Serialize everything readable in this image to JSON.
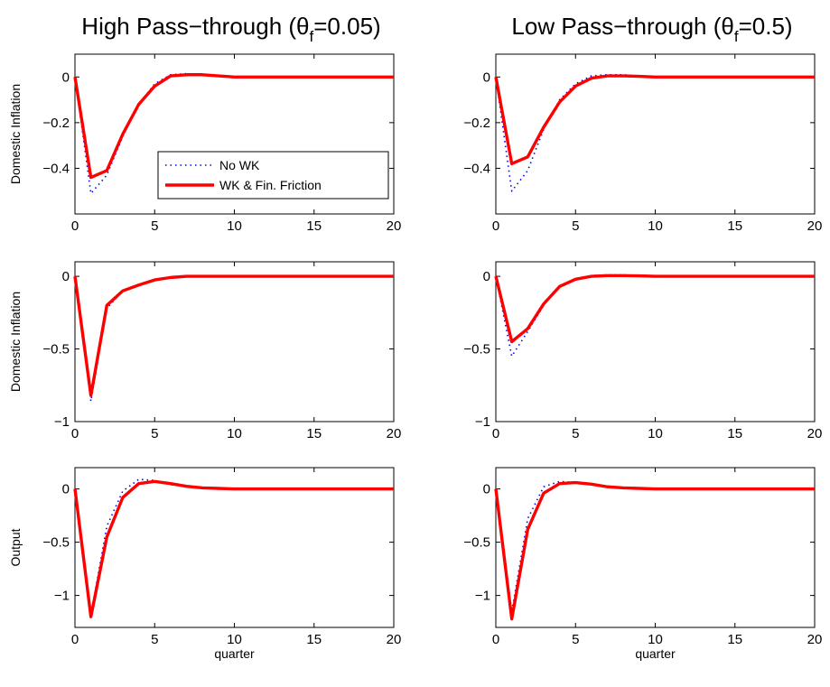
{
  "titles": [
    {
      "main": "High Pass−through (θ",
      "sub": "f",
      "tail": "=0.05)"
    },
    {
      "main": "Low Pass−through (θ",
      "sub": "f",
      "tail": "=0.5)"
    }
  ],
  "colors": {
    "no_wk": "#0000ff",
    "wk_fin": "#ff0000",
    "axes": "#000000"
  },
  "legend": {
    "entries": [
      "No WK",
      "WK & Fin. Friction"
    ],
    "placement": "inside-lower-right"
  },
  "chart_data": [
    {
      "type": "line",
      "row": 0,
      "col": 0,
      "title": "High Pass−through (θf=0.05)",
      "ylabel": "Domestic Inflation",
      "xlabel": "",
      "xlim": [
        0,
        20
      ],
      "ylim": [
        -0.6,
        0.1
      ],
      "xticks": [
        0,
        5,
        10,
        15,
        20
      ],
      "xtick_labels": [
        "0",
        "5",
        "10",
        "15",
        "20"
      ],
      "yticks": [
        -0.4,
        -0.2,
        0
      ],
      "ytick_labels": [
        "-0.4",
        "-0.2",
        "0"
      ],
      "x": [
        0,
        1,
        2,
        3,
        4,
        5,
        6,
        7,
        8,
        9,
        10,
        11,
        12,
        13,
        14,
        15,
        16,
        17,
        18,
        19,
        20
      ],
      "show_legend": true,
      "series": [
        {
          "name": "No WK",
          "style": "dotted",
          "values": [
            0,
            -0.51,
            -0.43,
            -0.26,
            -0.12,
            -0.03,
            0.01,
            0.015,
            0.01,
            0.005,
            0,
            0,
            0,
            0,
            0,
            0,
            0,
            0,
            0,
            0,
            0
          ]
        },
        {
          "name": "WK & Fin. Friction",
          "style": "solid",
          "values": [
            0,
            -0.44,
            -0.41,
            -0.25,
            -0.12,
            -0.04,
            0.005,
            0.01,
            0.01,
            0.005,
            0,
            0,
            0,
            0,
            0,
            0,
            0,
            0,
            0,
            0,
            0
          ]
        }
      ]
    },
    {
      "type": "line",
      "row": 0,
      "col": 1,
      "title": "Low Pass−through (θf=0.5)",
      "ylabel": "",
      "xlabel": "",
      "xlim": [
        0,
        20
      ],
      "ylim": [
        -0.6,
        0.1
      ],
      "xticks": [
        0,
        5,
        10,
        15,
        20
      ],
      "xtick_labels": [
        "0",
        "5",
        "10",
        "15",
        "20"
      ],
      "yticks": [
        -0.4,
        -0.2,
        0
      ],
      "ytick_labels": [
        "-0.4",
        "-0.2",
        "0"
      ],
      "x": [
        0,
        1,
        2,
        3,
        4,
        5,
        6,
        7,
        8,
        9,
        10,
        11,
        12,
        13,
        14,
        15,
        16,
        17,
        18,
        19,
        20
      ],
      "show_legend": false,
      "series": [
        {
          "name": "No WK",
          "style": "dotted",
          "values": [
            0,
            -0.5,
            -0.41,
            -0.23,
            -0.1,
            -0.03,
            0.005,
            0.01,
            0.01,
            0.005,
            0,
            0,
            0,
            0,
            0,
            0,
            0,
            0,
            0,
            0,
            0
          ]
        },
        {
          "name": "WK & Fin. Friction",
          "style": "solid",
          "values": [
            0,
            -0.38,
            -0.35,
            -0.22,
            -0.11,
            -0.04,
            -0.005,
            0.005,
            0.005,
            0.003,
            0,
            0,
            0,
            0,
            0,
            0,
            0,
            0,
            0,
            0,
            0
          ]
        }
      ]
    },
    {
      "type": "line",
      "row": 1,
      "col": 0,
      "title": "",
      "ylabel": "Domestic Inflation",
      "xlabel": "",
      "xlim": [
        0,
        20
      ],
      "ylim": [
        -1,
        0.1
      ],
      "xticks": [
        0,
        5,
        10,
        15,
        20
      ],
      "xtick_labels": [
        "0",
        "5",
        "10",
        "15",
        "20"
      ],
      "yticks": [
        -1,
        -0.5,
        0
      ],
      "ytick_labels": [
        "-1",
        "-0.5",
        "0"
      ],
      "x": [
        0,
        1,
        2,
        3,
        4,
        5,
        6,
        7,
        8,
        9,
        10,
        11,
        12,
        13,
        14,
        15,
        16,
        17,
        18,
        19,
        20
      ],
      "show_legend": false,
      "series": [
        {
          "name": "No WK",
          "style": "dotted",
          "values": [
            0,
            -0.86,
            -0.22,
            -0.1,
            -0.06,
            -0.03,
            -0.01,
            0,
            0,
            0,
            0,
            0,
            0,
            0,
            0,
            0,
            0,
            0,
            0,
            0,
            0
          ]
        },
        {
          "name": "WK & Fin. Friction",
          "style": "solid",
          "values": [
            0,
            -0.82,
            -0.2,
            -0.1,
            -0.06,
            -0.025,
            -0.008,
            0,
            0,
            0,
            0,
            0,
            0,
            0,
            0,
            0,
            0,
            0,
            0,
            0,
            0
          ]
        }
      ]
    },
    {
      "type": "line",
      "row": 1,
      "col": 1,
      "title": "",
      "ylabel": "",
      "xlabel": "",
      "xlim": [
        0,
        20
      ],
      "ylim": [
        -1,
        0.1
      ],
      "xticks": [
        0,
        5,
        10,
        15,
        20
      ],
      "xtick_labels": [
        "0",
        "5",
        "10",
        "15",
        "20"
      ],
      "yticks": [
        -1,
        -0.5,
        0
      ],
      "ytick_labels": [
        "-1",
        "-0.5",
        "0"
      ],
      "x": [
        0,
        1,
        2,
        3,
        4,
        5,
        6,
        7,
        8,
        9,
        10,
        11,
        12,
        13,
        14,
        15,
        16,
        17,
        18,
        19,
        20
      ],
      "show_legend": false,
      "series": [
        {
          "name": "No WK",
          "style": "dotted",
          "values": [
            0,
            -0.55,
            -0.38,
            -0.2,
            -0.07,
            -0.02,
            0.005,
            0.01,
            0.01,
            0.005,
            0,
            0,
            0,
            0,
            0,
            0,
            0,
            0,
            0,
            0,
            0
          ]
        },
        {
          "name": "WK & Fin. Friction",
          "style": "solid",
          "values": [
            0,
            -0.45,
            -0.36,
            -0.19,
            -0.07,
            -0.02,
            0,
            0.005,
            0.005,
            0.003,
            0,
            0,
            0,
            0,
            0,
            0,
            0,
            0,
            0,
            0,
            0
          ]
        }
      ]
    },
    {
      "type": "line",
      "row": 2,
      "col": 0,
      "title": "",
      "ylabel": "Output",
      "xlabel": "quarter",
      "xlim": [
        0,
        20
      ],
      "ylim": [
        -1.3,
        0.2
      ],
      "xticks": [
        0,
        5,
        10,
        15,
        20
      ],
      "xtick_labels": [
        "0",
        "5",
        "10",
        "15",
        "20"
      ],
      "yticks": [
        -1,
        -0.5,
        0
      ],
      "ytick_labels": [
        "-1",
        "-0.5",
        "0"
      ],
      "x": [
        0,
        1,
        2,
        3,
        4,
        5,
        6,
        7,
        8,
        9,
        10,
        11,
        12,
        13,
        14,
        15,
        16,
        17,
        18,
        19,
        20
      ],
      "show_legend": false,
      "series": [
        {
          "name": "No WK",
          "style": "dotted",
          "values": [
            0,
            -1.18,
            -0.35,
            -0.02,
            0.09,
            0.08,
            0.04,
            0.02,
            0.01,
            0.005,
            0,
            0,
            0,
            0,
            0,
            0,
            0,
            0,
            0,
            0,
            0
          ]
        },
        {
          "name": "WK & Fin. Friction",
          "style": "solid",
          "values": [
            0,
            -1.2,
            -0.45,
            -0.08,
            0.05,
            0.07,
            0.05,
            0.025,
            0.01,
            0.005,
            0,
            0,
            0,
            0,
            0,
            0,
            0,
            0,
            0,
            0,
            0
          ]
        }
      ]
    },
    {
      "type": "line",
      "row": 2,
      "col": 1,
      "title": "",
      "ylabel": "",
      "xlabel": "quarter",
      "xlim": [
        0,
        20
      ],
      "ylim": [
        -1.3,
        0.2
      ],
      "xticks": [
        0,
        5,
        10,
        15,
        20
      ],
      "xtick_labels": [
        "0",
        "5",
        "10",
        "15",
        "20"
      ],
      "yticks": [
        -1,
        -0.5,
        0
      ],
      "ytick_labels": [
        "-1",
        "-0.5",
        "0"
      ],
      "x": [
        0,
        1,
        2,
        3,
        4,
        5,
        6,
        7,
        8,
        9,
        10,
        11,
        12,
        13,
        14,
        15,
        16,
        17,
        18,
        19,
        20
      ],
      "show_legend": false,
      "series": [
        {
          "name": "No WK",
          "style": "dotted",
          "values": [
            0,
            -1.15,
            -0.28,
            0.02,
            0.07,
            0.06,
            0.04,
            0.02,
            0.01,
            0.005,
            0,
            0,
            0,
            0,
            0,
            0,
            0,
            0,
            0,
            0,
            0
          ]
        },
        {
          "name": "WK & Fin. Friction",
          "style": "solid",
          "values": [
            0,
            -1.22,
            -0.38,
            -0.04,
            0.05,
            0.06,
            0.045,
            0.02,
            0.01,
            0.005,
            0,
            0,
            0,
            0,
            0,
            0,
            0,
            0,
            0,
            0,
            0
          ]
        }
      ]
    }
  ]
}
